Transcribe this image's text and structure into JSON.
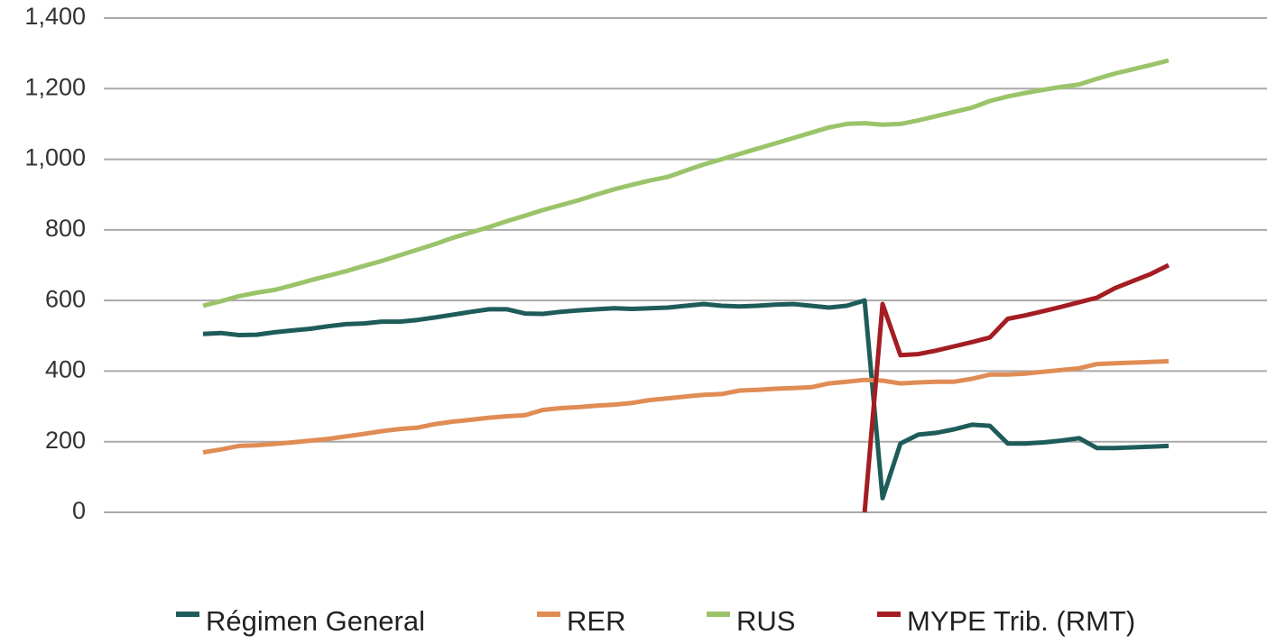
{
  "chart_data": {
    "type": "line",
    "categories": [
      null,
      null,
      null,
      null,
      null,
      null,
      null,
      null,
      null,
      null,
      null,
      null,
      null,
      null,
      null,
      null,
      null,
      null,
      null,
      null,
      null,
      null,
      null,
      null,
      null,
      null,
      null,
      null,
      null,
      null,
      null,
      null,
      null,
      null,
      null,
      null,
      null,
      null,
      null,
      null,
      null,
      null,
      null,
      null,
      null,
      null,
      null,
      null,
      null,
      null,
      null,
      null,
      null,
      null,
      null
    ],
    "series": [
      {
        "name": "Régimen General",
        "color": "#1e5c5a",
        "values": [
          505,
          508,
          502,
          503,
          510,
          515,
          520,
          527,
          533,
          535,
          540,
          540,
          545,
          552,
          560,
          568,
          575,
          575,
          563,
          562,
          568,
          572,
          575,
          578,
          576,
          578,
          580,
          585,
          590,
          585,
          583,
          585,
          588,
          590,
          585,
          580,
          585,
          600,
          40,
          195,
          220,
          225,
          235,
          248,
          245,
          195,
          195,
          198,
          203,
          210,
          182,
          182,
          184,
          186,
          188
        ]
      },
      {
        "name": "RER",
        "color": "#e08c55",
        "values": [
          170,
          178,
          188,
          190,
          194,
          198,
          203,
          208,
          215,
          222,
          230,
          236,
          240,
          250,
          257,
          262,
          268,
          272,
          275,
          290,
          295,
          298,
          302,
          305,
          310,
          318,
          323,
          328,
          333,
          335,
          345,
          347,
          350,
          352,
          354,
          365,
          370,
          375,
          373,
          365,
          368,
          370,
          370,
          378,
          390,
          390,
          393,
          398,
          403,
          408,
          420,
          422,
          424,
          426,
          428
        ]
      },
      {
        "name": "RUS",
        "color": "#9bc46a",
        "values": [
          585,
          598,
          612,
          622,
          630,
          643,
          657,
          670,
          683,
          698,
          712,
          728,
          744,
          760,
          778,
          793,
          808,
          825,
          840,
          856,
          870,
          884,
          900,
          915,
          928,
          940,
          950,
          968,
          985,
          1000,
          1015,
          1030,
          1045,
          1060,
          1075,
          1090,
          1100,
          1102,
          1098,
          1100,
          1110,
          1122,
          1134,
          1146,
          1165,
          1178,
          1188,
          1197,
          1205,
          1212,
          1228,
          1243,
          1255,
          1267,
          1280
        ]
      },
      {
        "name": "MYPE Trib. (RMT)",
        "color": "#a31d22",
        "values": [
          null,
          null,
          null,
          null,
          null,
          null,
          null,
          null,
          null,
          null,
          null,
          null,
          null,
          null,
          null,
          null,
          null,
          null,
          null,
          null,
          null,
          null,
          null,
          null,
          null,
          null,
          null,
          null,
          null,
          null,
          null,
          null,
          null,
          null,
          null,
          null,
          null,
          0,
          590,
          445,
          448,
          458,
          470,
          482,
          495,
          548,
          558,
          570,
          582,
          595,
          608,
          635,
          655,
          675,
          700
        ]
      }
    ],
    "ylim": [
      0,
      1400
    ],
    "yticks": [
      0,
      200,
      400,
      600,
      800,
      {
        "value": 1000,
        "label": "1,000"
      },
      {
        "value": 1200,
        "label": "1,200"
      },
      {
        "value": 1400,
        "label": "1,400"
      }
    ],
    "grid": true,
    "legend": "bottom"
  }
}
